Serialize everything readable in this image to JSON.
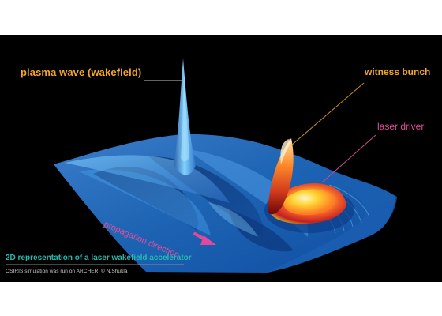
{
  "labels": {
    "plasma_wave": "plasma wave (wakefield)",
    "witness_bunch": "witness bunch",
    "laser_driver": "laser driver",
    "propagation_direction": "propagation direction"
  },
  "caption": "2D representation of a laser wakefield accelerator",
  "credit": "OSIRIS simulation was run on ARCHER. © N.Shukla",
  "colors": {
    "background": "#000000",
    "label_orange": "#f4a52a",
    "label_magenta": "#df4f9a",
    "caption_teal": "#28b9ae",
    "surface_blue": "#1f67b8"
  }
}
